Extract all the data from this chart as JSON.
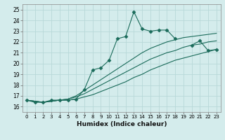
{
  "xlabel": "Humidex (Indice chaleur)",
  "ylabel": "",
  "bg_color": "#d4ecec",
  "grid_color": "#b8d8d8",
  "line_color": "#1a6b5a",
  "xlim": [
    -0.5,
    23.5
  ],
  "ylim": [
    15.5,
    25.5
  ],
  "xticks": [
    0,
    1,
    2,
    3,
    4,
    5,
    6,
    7,
    8,
    9,
    10,
    11,
    12,
    13,
    14,
    15,
    16,
    17,
    18,
    19,
    20,
    21,
    22,
    23
  ],
  "yticks": [
    16,
    17,
    18,
    19,
    20,
    21,
    22,
    23,
    24,
    25
  ],
  "series": [
    {
      "x": [
        0,
        1,
        2,
        3,
        4,
        5,
        6,
        7,
        8,
        9,
        10,
        11,
        12,
        13,
        14,
        15,
        16,
        17,
        18,
        19,
        20,
        21,
        22,
        23
      ],
      "y": [
        16.6,
        16.4,
        16.4,
        16.6,
        16.6,
        16.6,
        16.7,
        17.6,
        19.4,
        19.6,
        20.3,
        22.3,
        22.5,
        24.8,
        23.2,
        23.0,
        23.1,
        23.1,
        22.3,
        null,
        21.7,
        22.1,
        21.2,
        21.3
      ],
      "marker": "D",
      "markersize": 2.5
    },
    {
      "x": [
        0,
        2,
        3,
        4,
        5,
        6,
        7,
        8,
        9,
        10,
        11,
        12,
        13,
        14,
        15,
        16,
        17,
        18,
        19,
        20,
        21,
        22,
        23
      ],
      "y": [
        16.6,
        16.4,
        16.5,
        16.6,
        16.7,
        17.0,
        17.5,
        18.0,
        18.5,
        19.0,
        19.5,
        20.0,
        20.5,
        21.0,
        21.4,
        21.7,
        22.0,
        22.2,
        22.4,
        22.5,
        22.6,
        22.7,
        22.8
      ],
      "marker": null,
      "markersize": 0
    },
    {
      "x": [
        0,
        2,
        3,
        4,
        5,
        6,
        7,
        8,
        9,
        10,
        11,
        12,
        13,
        14,
        15,
        16,
        17,
        18,
        19,
        20,
        21,
        22,
        23
      ],
      "y": [
        16.6,
        16.4,
        16.5,
        16.6,
        16.7,
        16.9,
        17.2,
        17.6,
        18.0,
        18.4,
        18.8,
        19.2,
        19.6,
        20.0,
        20.4,
        20.7,
        21.0,
        21.2,
        21.5,
        21.7,
        21.8,
        22.0,
        22.1
      ],
      "marker": null,
      "markersize": 0
    },
    {
      "x": [
        0,
        2,
        3,
        4,
        5,
        6,
        7,
        8,
        9,
        10,
        11,
        12,
        13,
        14,
        15,
        16,
        17,
        18,
        19,
        20,
        21,
        22,
        23
      ],
      "y": [
        16.6,
        16.4,
        16.5,
        16.6,
        16.6,
        16.7,
        16.9,
        17.1,
        17.4,
        17.7,
        18.0,
        18.3,
        18.7,
        19.0,
        19.4,
        19.7,
        20.0,
        20.3,
        20.5,
        20.7,
        20.9,
        21.1,
        21.3
      ],
      "marker": null,
      "markersize": 0
    }
  ]
}
